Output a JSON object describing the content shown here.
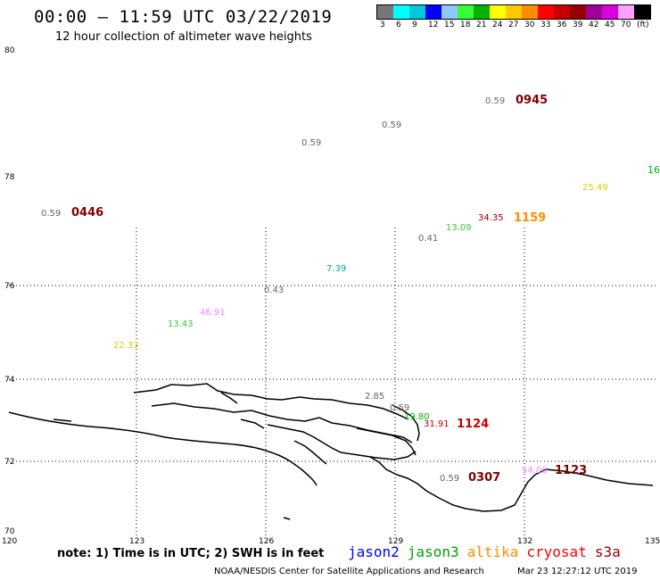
{
  "header": {
    "title": "00:00 – 11:59 UTC 03/22/2019",
    "subtitle": "12 hour collection of altimeter wave heights"
  },
  "legend": {
    "colors": [
      "#777777",
      "#00ffff",
      "#00c8dc",
      "#0000ff",
      "#8cc8ff",
      "#33ff33",
      "#00b400",
      "#ffff00",
      "#ffc800",
      "#ff8c00",
      "#ff0000",
      "#c80000",
      "#960000",
      "#a0009c",
      "#dc00dc",
      "#ffa0ff",
      "#000000"
    ],
    "labels": [
      "3",
      "6",
      "9",
      "12",
      "15",
      "18",
      "21",
      "24",
      "27",
      "30",
      "33",
      "36",
      "39",
      "42",
      "45",
      "70",
      "(ft)"
    ]
  },
  "axes": {
    "y_labels": [
      "80",
      "78",
      "76",
      "74",
      "72",
      "70"
    ],
    "x_labels": [
      "120",
      "123",
      "126",
      "129",
      "132",
      "135"
    ]
  },
  "observations": [
    {
      "text": "0.59",
      "color": "#666666",
      "name": "swh-label"
    },
    {
      "text": "0945",
      "color": "#800000",
      "name": "time-label"
    },
    {
      "text": "0.59",
      "color": "#666666",
      "name": "swh-label"
    },
    {
      "text": "0.59",
      "color": "#666666",
      "name": "swh-label"
    },
    {
      "text": "16",
      "color": "#00b400",
      "name": "swh-label"
    },
    {
      "text": "25.49",
      "color": "#e6c800",
      "name": "swh-label"
    },
    {
      "text": "0.59",
      "color": "#666666",
      "name": "swh-label"
    },
    {
      "text": "0446",
      "color": "#800000",
      "name": "time-label"
    },
    {
      "text": "34.35",
      "color": "#960000",
      "name": "swh-label"
    },
    {
      "text": "1159",
      "color": "#ff8c00",
      "name": "time-label"
    },
    {
      "text": "13.09",
      "color": "#33cc33",
      "name": "swh-label"
    },
    {
      "text": "0.41",
      "color": "#666666",
      "name": "swh-label"
    },
    {
      "text": "7.39",
      "color": "#00a0c8",
      "name": "swh-label"
    },
    {
      "text": "0.43",
      "color": "#666666",
      "name": "swh-label"
    },
    {
      "text": "46.91",
      "color": "#ff80ff",
      "name": "swh-label"
    },
    {
      "text": "13.43",
      "color": "#33cc33",
      "name": "swh-label"
    },
    {
      "text": "22.33",
      "color": "#e6c800",
      "name": "swh-label"
    },
    {
      "text": "2.85",
      "color": "#666666",
      "name": "swh-label"
    },
    {
      "text": "0.59",
      "color": "#666666",
      "name": "swh-label"
    },
    {
      "text": "19.80",
      "color": "#00b400",
      "name": "swh-label"
    },
    {
      "text": "31.91",
      "color": "#c80000",
      "name": "swh-label"
    },
    {
      "text": "1124",
      "color": "#c80000",
      "name": "time-label"
    },
    {
      "text": "0.59",
      "color": "#666666",
      "name": "swh-label"
    },
    {
      "text": "0307",
      "color": "#800000",
      "name": "time-label"
    },
    {
      "text": "54.06",
      "color": "#ff80ff",
      "name": "swh-label"
    },
    {
      "text": "1123",
      "color": "#800000",
      "name": "time-label"
    }
  ],
  "footer": {
    "note": "note: 1) Time is in UTC; 2) SWH is in feet",
    "satellites": [
      {
        "name": "jason2",
        "color": "#0000ff"
      },
      {
        "name": "jason3",
        "color": "#00a000"
      },
      {
        "name": "altika",
        "color": "#ff8c00"
      },
      {
        "name": "cryosat",
        "color": "#ff0000"
      },
      {
        "name": "s3a",
        "color": "#960000"
      }
    ],
    "credit": "NOAA/NESDIS Center for Satellite Applications and Research",
    "timestamp": "Mar 23 12:27:12 UTC 2019"
  }
}
